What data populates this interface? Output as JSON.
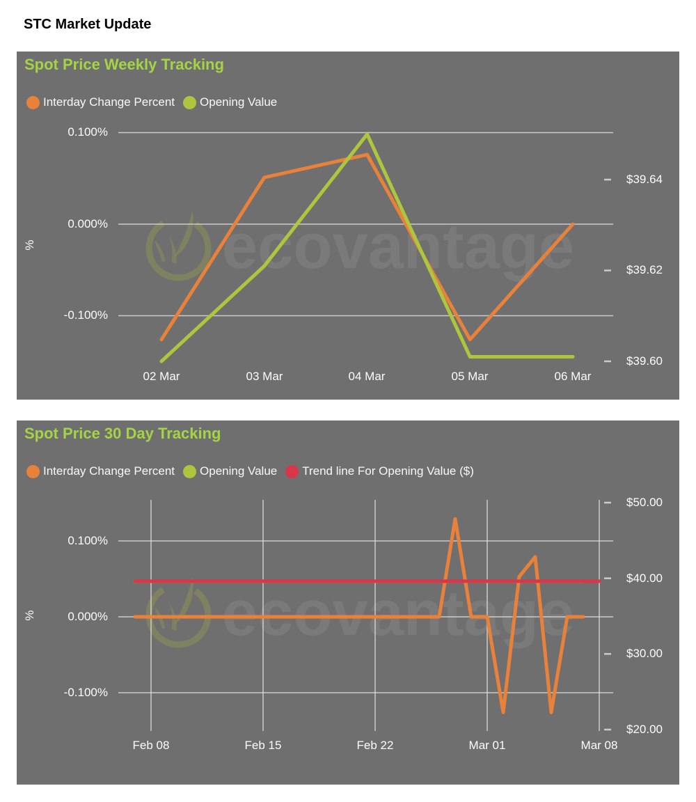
{
  "page": {
    "title": "STC Market Update"
  },
  "charts": [
    {
      "title": "Spot Price Weekly Tracking",
      "watermark": "ecovantage",
      "legend": [
        {
          "label": "Interday Change Percent",
          "color": "#E8813A"
        },
        {
          "label": "Opening Value",
          "color": "#AEC63E"
        }
      ],
      "y_left_label": "%",
      "y_left_ticks": [
        "0.100%",
        "0.000%",
        "-0.100%"
      ],
      "y_right_ticks": [
        "$39.64",
        "$39.62",
        "$39.60"
      ],
      "x_ticks": [
        "02 Mar",
        "03 Mar",
        "04 Mar",
        "05 Mar",
        "06 Mar"
      ],
      "chart_data": {
        "type": "line",
        "categories": [
          "02 Mar",
          "03 Mar",
          "04 Mar",
          "05 Mar",
          "06 Mar"
        ],
        "series": [
          {
            "name": "Interday Change Percent",
            "axis": "left_percent",
            "color": "#E8813A",
            "values": [
              -0.126,
              0.051,
              0.076,
              -0.126,
              0.0
            ]
          },
          {
            "name": "Opening Value",
            "axis": "right_dollar",
            "color": "#AEC63E",
            "values": [
              39.6,
              39.621,
              39.65,
              39.601,
              39.601
            ]
          }
        ],
        "left_axis": {
          "label": "%",
          "tick_values": [
            0.1,
            0.0,
            -0.1
          ],
          "format": "percent"
        },
        "right_axis": {
          "tick_values": [
            39.64,
            39.62,
            39.6
          ],
          "format": "dollar"
        },
        "grid": "horizontal",
        "legend_position": "top"
      }
    },
    {
      "title": "Spot Price 30 Day Tracking",
      "watermark": "ecovantage",
      "legend": [
        {
          "label": "Interday Change Percent",
          "color": "#E8813A"
        },
        {
          "label": "Opening Value",
          "color": "#AEC63E"
        },
        {
          "label": "Trend line For Opening Value ($)",
          "color": "#D9364A"
        }
      ],
      "y_left_label": "%",
      "y_left_ticks": [
        "0.100%",
        "0.000%",
        "-0.100%"
      ],
      "y_right_ticks": [
        "$50.00",
        "$40.00",
        "$30.00",
        "$20.00"
      ],
      "x_ticks": [
        "Feb 08",
        "Feb 15",
        "Feb 22",
        "Mar 01",
        "Mar 08"
      ],
      "chart_data": {
        "type": "line",
        "x": [
          "Feb 07",
          "Feb 08",
          "Feb 09",
          "Feb 10",
          "Feb 11",
          "Feb 12",
          "Feb 13",
          "Feb 14",
          "Feb 15",
          "Feb 16",
          "Feb 17",
          "Feb 18",
          "Feb 19",
          "Feb 20",
          "Feb 21",
          "Feb 22",
          "Feb 23",
          "Feb 24",
          "Feb 25",
          "Feb 26",
          "Feb 27",
          "Feb 28",
          "Mar 01",
          "Mar 02",
          "Mar 03",
          "Mar 04",
          "Mar 05",
          "Mar 06",
          "Mar 07",
          "Mar 08"
        ],
        "x_axis_ticks": [
          "Feb 08",
          "Feb 15",
          "Feb 22",
          "Mar 01",
          "Mar 08"
        ],
        "series": [
          {
            "name": "Interday Change Percent",
            "axis": "left_percent",
            "color": "#E8813A",
            "values": [
              0,
              0,
              0,
              0,
              0,
              0,
              0,
              0,
              0,
              0,
              0,
              0,
              0,
              0,
              0,
              0,
              0,
              0,
              0,
              0,
              0.129,
              0,
              0,
              -0.126,
              0.053,
              0.079,
              -0.126,
              0,
              0,
              null
            ]
          },
          {
            "name": "Opening Value",
            "axis": "right_dollar",
            "color": "#AEC63E",
            "values": [
              39.6,
              39.6,
              39.6,
              39.6,
              39.6,
              39.6,
              39.6,
              39.6,
              39.6,
              39.6,
              39.6,
              39.6,
              39.6,
              39.6,
              39.6,
              39.6,
              39.6,
              39.6,
              39.6,
              39.6,
              39.6,
              39.6,
              39.6,
              39.6,
              39.6,
              39.6,
              39.6,
              39.6,
              39.6,
              null
            ]
          },
          {
            "name": "Trend line For Opening Value ($)",
            "axis": "right_dollar",
            "color": "#D9364A",
            "values": [
              39.61,
              39.61,
              39.61,
              39.61,
              39.61,
              39.61,
              39.61,
              39.61,
              39.61,
              39.61,
              39.61,
              39.61,
              39.61,
              39.61,
              39.61,
              39.61,
              39.61,
              39.61,
              39.61,
              39.61,
              39.61,
              39.61,
              39.61,
              39.61,
              39.61,
              39.61,
              39.61,
              39.61,
              39.61,
              39.61
            ]
          }
        ],
        "left_axis": {
          "label": "%",
          "tick_values": [
            0.1,
            0.0,
            -0.1
          ],
          "format": "percent"
        },
        "right_axis": {
          "tick_values": [
            50,
            40,
            30,
            20
          ],
          "format": "dollar"
        },
        "grid": "both",
        "legend_position": "top"
      }
    }
  ]
}
